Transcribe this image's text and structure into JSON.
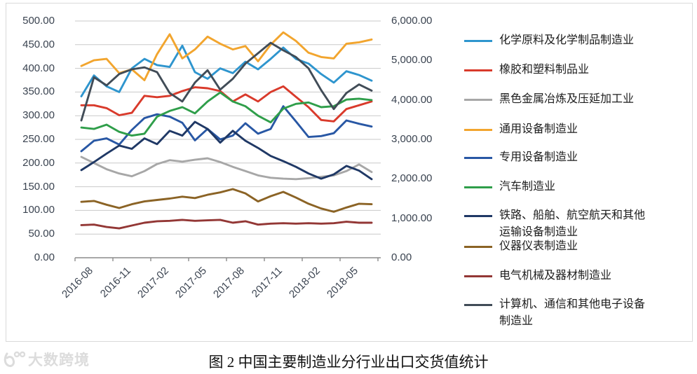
{
  "caption": "图 2 中国主要制造业分行业出口交货值统计",
  "watermark": {
    "text": "大数跨境",
    "logo": "circle-face-logo"
  },
  "chart_data": {
    "type": "line",
    "title": "",
    "grid": true,
    "legend_position": "right",
    "left_axis": {
      "min": 0,
      "max": 500,
      "step": 50,
      "tick_labels": [
        "500.00",
        "450.00",
        "400.00",
        "350.00",
        "300.00",
        "250.00",
        "200.00",
        "150.00",
        "100.00",
        "50.00",
        "0.00"
      ]
    },
    "right_axis": {
      "min": 0,
      "max": 6000,
      "step": 1000,
      "tick_labels": [
        "6,000.00",
        "5,000.00",
        "4,000.00",
        "3,000.00",
        "2,000.00",
        "1,000.00",
        "0.00"
      ]
    },
    "x_tick_labels": [
      "2016-08",
      "2016-11",
      "2017-02",
      "2017-05",
      "2017-08",
      "2017-11",
      "2018-02",
      "2018-05"
    ],
    "categories": [
      "2016-08",
      "2016-09",
      "2016-10",
      "2016-11",
      "2016-12",
      "2017-01",
      "2017-02",
      "2017-03",
      "2017-04",
      "2017-05",
      "2017-06",
      "2017-07",
      "2017-08",
      "2017-09",
      "2017-10",
      "2017-11",
      "2017-12",
      "2018-01",
      "2018-02",
      "2018-03",
      "2018-04",
      "2018-05",
      "2018-06",
      "2018-07"
    ],
    "series": [
      {
        "name": "化学原料及化学制品制造业",
        "color": "#2E95CE",
        "values": [
          341,
          385,
          362,
          350,
          400,
          420,
          407,
          403,
          448,
          392,
          378,
          400,
          390,
          414,
          398,
          420,
          444,
          420,
          410,
          388,
          370,
          394,
          386,
          374
        ]
      },
      {
        "name": "橡胶和塑料制品业",
        "color": "#D93A2B",
        "values": [
          322,
          322,
          316,
          301,
          306,
          342,
          339,
          342,
          352,
          360,
          358,
          352,
          330,
          345,
          330,
          350,
          362,
          340,
          318,
          291,
          288,
          314,
          322,
          330
        ]
      },
      {
        "name": "黑色金属冶炼及压延加工业",
        "color": "#A7A7A7",
        "values": [
          213,
          200,
          187,
          178,
          172,
          183,
          198,
          206,
          203,
          207,
          210,
          202,
          192,
          183,
          174,
          169,
          167,
          166,
          168,
          171,
          174,
          183,
          197,
          181
        ]
      },
      {
        "name": "通用设备制造业",
        "color": "#F2A52E",
        "values": [
          405,
          417,
          420,
          390,
          398,
          375,
          430,
          472,
          421,
          440,
          467,
          452,
          440,
          447,
          415,
          450,
          476,
          458,
          433,
          424,
          421,
          452,
          455,
          461
        ]
      },
      {
        "name": "专用设备制造业",
        "color": "#2857A4",
        "values": [
          225,
          247,
          252,
          239,
          270,
          295,
          303,
          298,
          285,
          248,
          272,
          250,
          258,
          284,
          262,
          272,
          320,
          288,
          255,
          257,
          263,
          290,
          283,
          277
        ]
      },
      {
        "name": "汽车制造业",
        "color": "#2F9E4A",
        "values": [
          275,
          272,
          281,
          266,
          258,
          262,
          298,
          310,
          318,
          305,
          330,
          349,
          330,
          320,
          300,
          286,
          315,
          325,
          328,
          318,
          320,
          334,
          336,
          333
        ]
      },
      {
        "name": "铁路、船舶、航空航天和其他运输设备制造业",
        "label_line1": "铁路、船舶、航空航天和其他",
        "label_line2": "运输设备制造业",
        "color": "#1F3865",
        "values": [
          185,
          202,
          220,
          237,
          230,
          252,
          240,
          268,
          258,
          287,
          272,
          243,
          268,
          247,
          232,
          215,
          204,
          192,
          178,
          167,
          176,
          194,
          184,
          166
        ]
      },
      {
        "name": "仪器仪表制造业",
        "color": "#8B6325",
        "values": [
          118,
          120,
          112,
          105,
          113,
          119,
          122,
          125,
          129,
          126,
          133,
          138,
          145,
          136,
          119,
          130,
          139,
          127,
          114,
          104,
          97,
          106,
          114,
          113
        ]
      },
      {
        "name": "电气机械及器材制造业",
        "color": "#933735",
        "values": [
          69,
          70,
          65,
          62,
          68,
          74,
          77,
          78,
          80,
          78,
          79,
          80,
          74,
          77,
          70,
          72,
          73,
          72,
          73,
          72,
          73,
          76,
          74,
          74
        ]
      },
      {
        "name": "计算机、通信和其他电子设备制造业",
        "label_line1": "计算机、通信和其他电子设备",
        "label_line2": "制造业",
        "color": "#414C57",
        "values": [
          290,
          381,
          364,
          388,
          398,
          402,
          392,
          348,
          330,
          370,
          396,
          355,
          378,
          410,
          432,
          454,
          438,
          424,
          400,
          354,
          314,
          348,
          366,
          353
        ]
      }
    ]
  }
}
